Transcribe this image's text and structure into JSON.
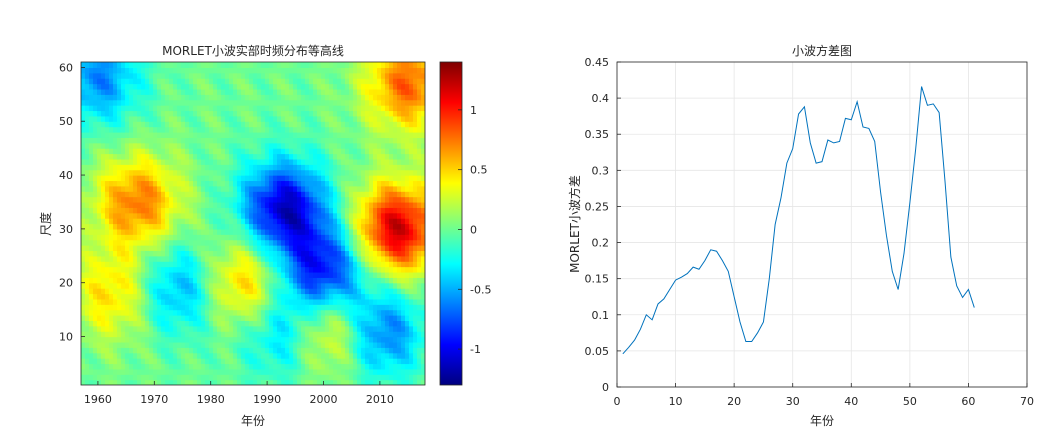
{
  "chart_data": [
    {
      "type": "heatmap",
      "title": "MORLET小波实部时频分布等高线",
      "xlabel": "年份",
      "ylabel": "尺度",
      "xlim": [
        1957,
        2018
      ],
      "ylim": [
        1,
        61
      ],
      "x_ticks": [
        1960,
        1970,
        1980,
        1990,
        2000,
        2010
      ],
      "y_ticks": [
        10,
        20,
        30,
        40,
        50,
        60
      ],
      "colorbar": {
        "colormap": "jet",
        "range": [
          -1.3,
          1.4
        ],
        "ticks": [
          -1,
          -0.5,
          0,
          0.5,
          1
        ],
        "colors": [
          "#00007f",
          "#0000ff",
          "#007fff",
          "#00ffff",
          "#7fff7f",
          "#ffff00",
          "#ff7f00",
          "#ff0000",
          "#7f0000"
        ]
      },
      "contour_lines": true,
      "features": [
        {
          "center": [
            1967,
            35
          ],
          "value": 0.75
        },
        {
          "center": [
            1963,
            18
          ],
          "value": 0.5
        },
        {
          "center": [
            1974,
            19
          ],
          "value": -0.55
        },
        {
          "center": [
            1986,
            20
          ],
          "value": 0.6
        },
        {
          "center": [
            1993,
            34
          ],
          "value": -1.1
        },
        {
          "center": [
            2000,
            22
          ],
          "value": -1.0
        },
        {
          "center": [
            2013,
            30
          ],
          "value": 1.2
        },
        {
          "center": [
            2001,
            12
          ],
          "value": 0.7
        },
        {
          "center": [
            1993,
            11
          ],
          "value": -0.5
        },
        {
          "center": [
            2010,
            11
          ],
          "value": -0.7
        },
        {
          "center": [
            1960,
            58
          ],
          "value": -0.6
        },
        {
          "center": [
            2015,
            57
          ],
          "value": 0.8
        }
      ]
    },
    {
      "type": "line",
      "title": "小波方差图",
      "xlabel": "年份",
      "ylabel": "MORLET小波方差",
      "xlim": [
        0,
        70
      ],
      "ylim": [
        0,
        0.45
      ],
      "x_ticks": [
        0,
        10,
        20,
        30,
        40,
        50,
        60,
        70
      ],
      "y_ticks": [
        0,
        0.05,
        0.1,
        0.15,
        0.2,
        0.25,
        0.3,
        0.35,
        0.4,
        0.45
      ],
      "grid": true,
      "line_color": "#0072bd",
      "x": [
        1,
        2,
        3,
        4,
        5,
        6,
        7,
        8,
        9,
        10,
        11,
        12,
        13,
        14,
        15,
        16,
        17,
        18,
        19,
        20,
        21,
        22,
        23,
        24,
        25,
        26,
        27,
        28,
        29,
        30,
        31,
        32,
        33,
        34,
        35,
        36,
        37,
        38,
        39,
        40,
        41,
        42,
        43,
        44,
        45,
        46,
        47,
        48,
        49,
        50,
        51,
        52,
        53,
        54,
        55,
        56,
        57,
        58,
        59,
        60,
        61
      ],
      "y": [
        0.046,
        0.055,
        0.065,
        0.08,
        0.1,
        0.093,
        0.115,
        0.122,
        0.135,
        0.148,
        0.152,
        0.157,
        0.166,
        0.163,
        0.175,
        0.19,
        0.188,
        0.175,
        0.16,
        0.125,
        0.09,
        0.063,
        0.063,
        0.075,
        0.09,
        0.15,
        0.225,
        0.262,
        0.31,
        0.33,
        0.378,
        0.388,
        0.338,
        0.31,
        0.312,
        0.342,
        0.338,
        0.34,
        0.372,
        0.37,
        0.395,
        0.36,
        0.358,
        0.34,
        0.27,
        0.21,
        0.16,
        0.135,
        0.185,
        0.255,
        0.33,
        0.416,
        0.39,
        0.392,
        0.38,
        0.285,
        0.18,
        0.14,
        0.124,
        0.135,
        0.11
      ]
    }
  ]
}
